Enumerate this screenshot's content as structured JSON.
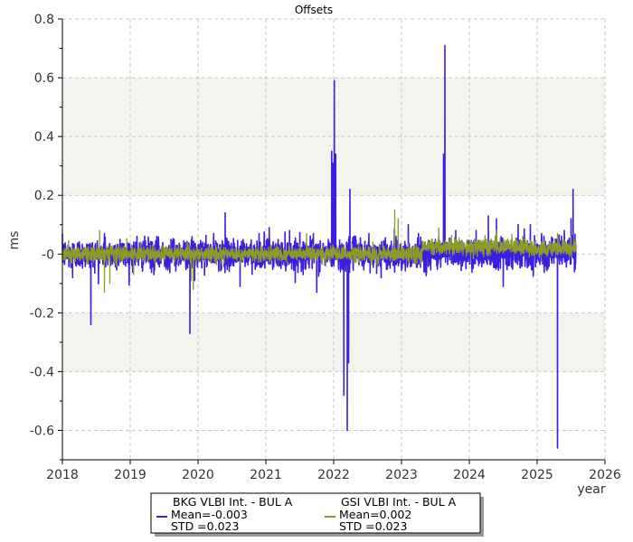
{
  "chart_data": {
    "type": "line",
    "title": "Offsets",
    "xlabel": "year",
    "ylabel": "ms",
    "xlim": [
      2018,
      2026
    ],
    "ylim": [
      -0.7,
      0.8
    ],
    "x_ticks": [
      "2018",
      "2019",
      "2020",
      "2021",
      "2022",
      "2023",
      "2024",
      "2025",
      "2026"
    ],
    "y_ticks": [
      "0.8",
      "0.6",
      "0.4",
      "0.2",
      "-0",
      "-0.2",
      "-0.4",
      "-0.6"
    ],
    "y_tick_values": [
      0.8,
      0.6,
      0.4,
      0.2,
      0,
      -0.2,
      -0.4,
      -0.6
    ],
    "bands": [
      [
        0.2,
        0.6
      ],
      [
        -0.4,
        -0.2
      ]
    ],
    "grid": true,
    "legend_position": "bottom-center",
    "series": [
      {
        "name": "BKG VLBI Int. - BUL A",
        "mean_label": "Mean=-0.003",
        "std_label": " STD =0.023",
        "color": "#3a1fe0",
        "x_range": [
          2018.0,
          2025.57
        ],
        "base_noise": 0.025,
        "spikes": [
          [
            2018.15,
            -0.08
          ],
          [
            2018.42,
            -0.24
          ],
          [
            2018.62,
            0.07
          ],
          [
            2018.85,
            0.05
          ],
          [
            2019.1,
            0.06
          ],
          [
            2019.35,
            -0.07
          ],
          [
            2019.6,
            0.05
          ],
          [
            2019.88,
            -0.27
          ],
          [
            2019.95,
            -0.09
          ],
          [
            2020.4,
            0.14
          ],
          [
            2020.62,
            -0.11
          ],
          [
            2020.9,
            0.07
          ],
          [
            2021.05,
            0.09
          ],
          [
            2021.35,
            0.08
          ],
          [
            2021.55,
            -0.07
          ],
          [
            2021.7,
            0.07
          ],
          [
            2021.75,
            -0.13
          ],
          [
            2021.92,
            0.05
          ],
          [
            2021.97,
            0.35
          ],
          [
            2021.99,
            0.31
          ],
          [
            2022.01,
            0.59
          ],
          [
            2022.03,
            0.34
          ],
          [
            2022.1,
            -0.06
          ],
          [
            2022.15,
            -0.48
          ],
          [
            2022.2,
            -0.6
          ],
          [
            2022.22,
            -0.37
          ],
          [
            2022.24,
            0.22
          ],
          [
            2022.3,
            0.06
          ],
          [
            2022.52,
            0.07
          ],
          [
            2022.7,
            -0.08
          ],
          [
            2022.92,
            0.06
          ],
          [
            2023.1,
            0.1
          ],
          [
            2023.25,
            0.07
          ],
          [
            2023.35,
            -0.06
          ],
          [
            2023.5,
            0.05
          ],
          [
            2023.62,
            0.34
          ],
          [
            2023.64,
            0.71
          ],
          [
            2023.8,
            0.08
          ],
          [
            2023.95,
            -0.05
          ],
          [
            2024.1,
            0.08
          ],
          [
            2024.28,
            0.13
          ],
          [
            2024.4,
            0.12
          ],
          [
            2024.5,
            -0.11
          ],
          [
            2024.72,
            0.1
          ],
          [
            2024.9,
            0.1
          ],
          [
            2025.1,
            0.06
          ],
          [
            2025.3,
            -0.66
          ],
          [
            2025.4,
            0.08
          ],
          [
            2025.5,
            0.12
          ],
          [
            2025.53,
            0.22
          ],
          [
            2025.55,
            -0.06
          ]
        ]
      },
      {
        "name": "GSI VLBI Int. - BUL A",
        "mean_label": "Mean=0.002",
        "std_label": " STD =0.023",
        "color": "#8d9a2a",
        "x_range": [
          2018.0,
          2025.57
        ],
        "base_noise": 0.013,
        "spikes": [
          [
            2018.55,
            0.08
          ],
          [
            2018.62,
            -0.13
          ],
          [
            2018.7,
            -0.1
          ],
          [
            2019.05,
            -0.07
          ],
          [
            2019.9,
            -0.09
          ],
          [
            2019.93,
            -0.12
          ],
          [
            2020.6,
            0.02
          ],
          [
            2021.6,
            0.07
          ],
          [
            2022.9,
            0.15
          ],
          [
            2022.95,
            0.12
          ],
          [
            2023.55,
            0.09
          ],
          [
            2024.4,
            0.08
          ],
          [
            2025.3,
            0.07
          ],
          [
            2025.5,
            0.06
          ]
        ]
      }
    ]
  }
}
